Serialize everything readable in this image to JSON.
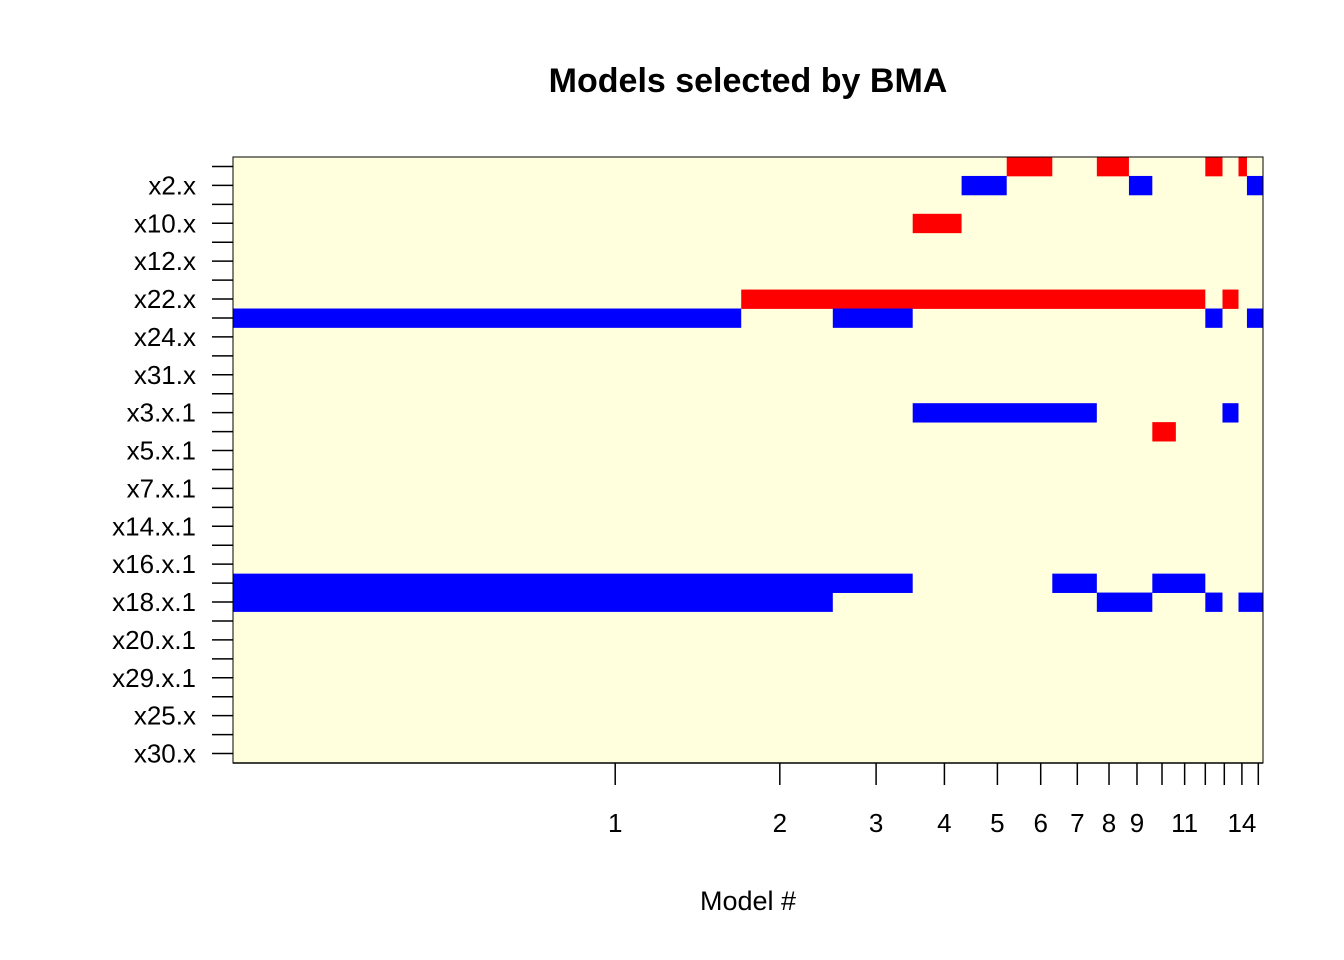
{
  "chart_data": {
    "type": "heatmap",
    "title": "Models selected by BMA",
    "xlabel": "Model #",
    "ylabel": "",
    "x_tick_labels": [
      "1",
      "2",
      "3",
      "4",
      "5",
      "6",
      "7",
      "8",
      "9",
      "11",
      "14"
    ],
    "x_tick_values": [
      1,
      2,
      3,
      4,
      5,
      6,
      7,
      8,
      9,
      11,
      14
    ],
    "y_tick_labels": [
      "x2.x",
      "x10.x",
      "x12.x",
      "x22.x",
      "x24.x",
      "x31.x",
      "x3.x.1",
      "x5.x.1",
      "x7.x.1",
      "x14.x.1",
      "x16.x.1",
      "x18.x.1",
      "x20.x.1",
      "x29.x.1",
      "x25.x",
      "x30.x"
    ],
    "x_domain": [
      0.2,
      15.3
    ],
    "legend": "none",
    "colors": {
      "background": "#ffffdd",
      "positive": "#ff0000",
      "negative": "#0000ff"
    },
    "cells": [
      {
        "row": 0,
        "x0": 5.2,
        "x1": 6.3,
        "sign": "positive"
      },
      {
        "row": 0,
        "x0": 7.6,
        "x1": 8.7,
        "sign": "positive"
      },
      {
        "row": 0,
        "x0": 12.0,
        "x1": 12.9,
        "sign": "positive"
      },
      {
        "row": 0,
        "x0": 13.8,
        "x1": 14.3,
        "sign": "positive"
      },
      {
        "row": 1,
        "x0": 4.3,
        "x1": 5.2,
        "sign": "negative"
      },
      {
        "row": 1,
        "x0": 8.7,
        "x1": 9.6,
        "sign": "negative"
      },
      {
        "row": 1,
        "x0": 14.3,
        "x1": 15.3,
        "sign": "negative"
      },
      {
        "row": 3,
        "x0": 3.5,
        "x1": 4.3,
        "sign": "positive"
      },
      {
        "row": 7,
        "x0": 1.7,
        "x1": 12.0,
        "sign": "positive"
      },
      {
        "row": 7,
        "x0": 12.9,
        "x1": 13.8,
        "sign": "positive"
      },
      {
        "row": 8,
        "x0": 0.2,
        "x1": 1.7,
        "sign": "negative"
      },
      {
        "row": 8,
        "x0": 2.5,
        "x1": 3.5,
        "sign": "negative"
      },
      {
        "row": 8,
        "x0": 12.0,
        "x1": 12.9,
        "sign": "negative"
      },
      {
        "row": 8,
        "x0": 14.3,
        "x1": 15.3,
        "sign": "negative"
      },
      {
        "row": 13,
        "x0": 3.5,
        "x1": 7.6,
        "sign": "negative"
      },
      {
        "row": 13,
        "x0": 12.9,
        "x1": 13.8,
        "sign": "negative"
      },
      {
        "row": 14,
        "x0": 9.6,
        "x1": 10.6,
        "sign": "positive"
      },
      {
        "row": 22,
        "x0": 0.2,
        "x1": 3.5,
        "sign": "negative"
      },
      {
        "row": 22,
        "x0": 6.3,
        "x1": 7.6,
        "sign": "negative"
      },
      {
        "row": 22,
        "x0": 9.6,
        "x1": 12.0,
        "sign": "negative"
      },
      {
        "row": 23,
        "x0": 0.2,
        "x1": 2.5,
        "sign": "negative"
      },
      {
        "row": 23,
        "x0": 7.6,
        "x1": 9.6,
        "sign": "negative"
      },
      {
        "row": 23,
        "x0": 12.0,
        "x1": 12.9,
        "sign": "negative"
      },
      {
        "row": 23,
        "x0": 13.8,
        "x1": 15.3,
        "sign": "negative"
      }
    ]
  }
}
